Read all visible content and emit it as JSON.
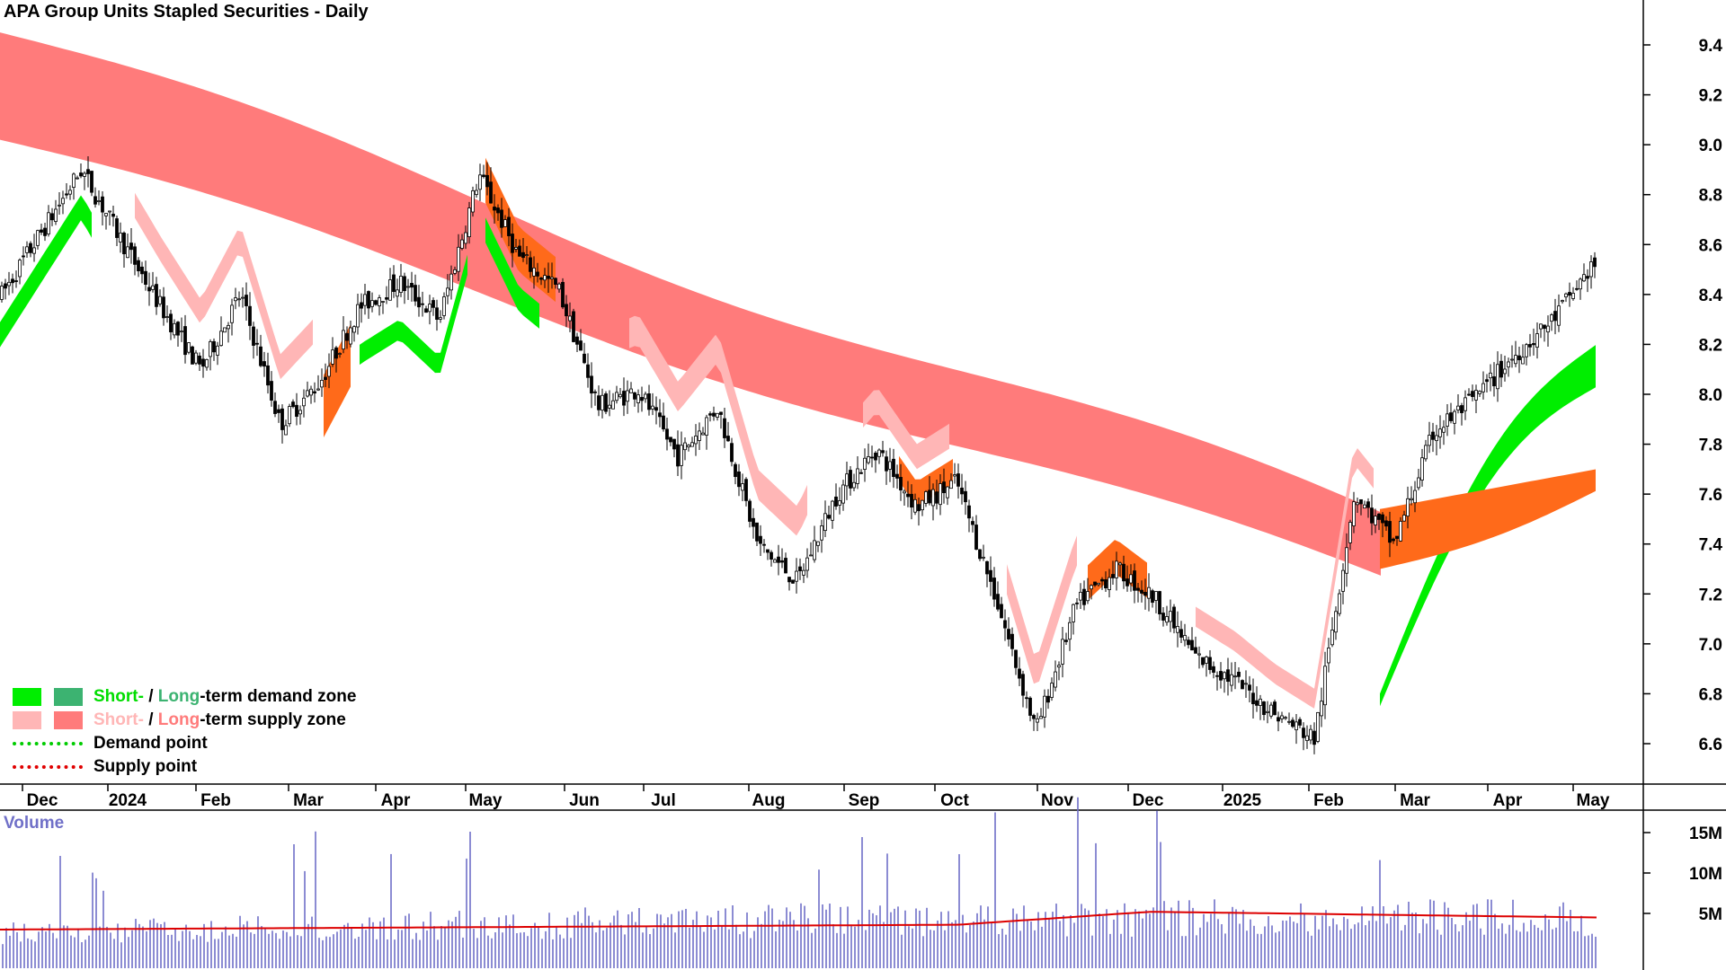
{
  "title": "APA Group Units Stapled Securities - Daily",
  "volume_title": "Volume",
  "legend": {
    "demand_short": "Short-",
    "demand_sep": " / ",
    "demand_long": "Long",
    "demand_rest": "-term demand zone",
    "supply_short": "Short-",
    "supply_sep": " / ",
    "supply_long": "Long",
    "supply_rest": "-term supply zone",
    "demand_point": "Demand point",
    "supply_point": "Supply point"
  },
  "colors": {
    "short_demand": "#00ee00",
    "long_demand": "#3cb371",
    "short_supply": "#ffb6b6",
    "long_supply": "#ff7b7b",
    "overlap_zone": "#ff6a1a",
    "demand_point": "#00cc00",
    "supply_point": "#e00000",
    "volume_bar": "#7070c8",
    "volume_avg": "#dd0000",
    "candle": "#000000"
  },
  "chart_data": {
    "type": "candlestick",
    "title": "APA Group Units Stapled Securities - Daily",
    "y_axis": {
      "ticks": [
        6.6,
        6.8,
        7.0,
        7.2,
        7.4,
        7.6,
        7.8,
        8.0,
        8.2,
        8.4,
        8.6,
        8.8,
        9.0,
        9.2,
        9.4
      ],
      "range": [
        6.48,
        9.55
      ]
    },
    "x_axis": {
      "labels": [
        "Dec",
        "2024",
        "Feb",
        "Mar",
        "Apr",
        "May",
        "Jun",
        "Jul",
        "Aug",
        "Sep",
        "Oct",
        "Nov",
        "Dec",
        "2025",
        "Feb",
        "Mar",
        "Apr",
        "May"
      ]
    },
    "price_path": [
      [
        "Dec",
        8.4
      ],
      [
        "Dec",
        8.65
      ],
      [
        "2024",
        8.9
      ],
      [
        "2024",
        8.62
      ],
      [
        "Feb",
        8.35
      ],
      [
        "Feb",
        8.1
      ],
      [
        "Feb",
        8.4
      ],
      [
        "Mar",
        7.88
      ],
      [
        "Mar",
        8.05
      ],
      [
        "Apr",
        8.35
      ],
      [
        "Apr",
        8.45
      ],
      [
        "May",
        8.3
      ],
      [
        "May",
        8.88
      ],
      [
        "Jun",
        8.55
      ],
      [
        "Jun",
        8.42
      ],
      [
        "Jul",
        7.95
      ],
      [
        "Jul",
        8.02
      ],
      [
        "Aug",
        7.75
      ],
      [
        "Aug",
        7.95
      ],
      [
        "Sep",
        7.4
      ],
      [
        "Sep",
        7.25
      ],
      [
        "Sep",
        7.6
      ],
      [
        "Oct",
        7.78
      ],
      [
        "Oct",
        7.55
      ],
      [
        "Oct",
        7.65
      ],
      [
        "Nov",
        7.18
      ],
      [
        "Nov",
        6.65
      ],
      [
        "Nov",
        7.15
      ],
      [
        "Dec",
        7.3
      ],
      [
        "Dec",
        7.18
      ],
      [
        "2025",
        6.95
      ],
      [
        "2025",
        6.85
      ],
      [
        "Feb",
        6.72
      ],
      [
        "Feb",
        6.62
      ],
      [
        "Feb",
        7.6
      ],
      [
        "Mar",
        7.4
      ],
      [
        "Mar",
        7.85
      ],
      [
        "Apr",
        7.98
      ],
      [
        "Apr",
        8.15
      ],
      [
        "May",
        8.3
      ],
      [
        "May",
        8.52
      ]
    ],
    "zones": {
      "long_term_supply": {
        "start_top": 9.45,
        "start_bottom": 9.02,
        "end_top": 7.5,
        "end_bottom": 7.25
      },
      "short_term_supply_min": 6.75,
      "short_term_demand_end": [
        8.05,
        8.2
      ],
      "long_term_demand_end": [
        7.6,
        7.7
      ]
    },
    "volume": {
      "axis_ticks": [
        "5M",
        "10M",
        "15M"
      ],
      "average": {
        "start": 3.0,
        "peak": 5.2,
        "end": 4.5
      },
      "max_spike": 17.5
    }
  }
}
